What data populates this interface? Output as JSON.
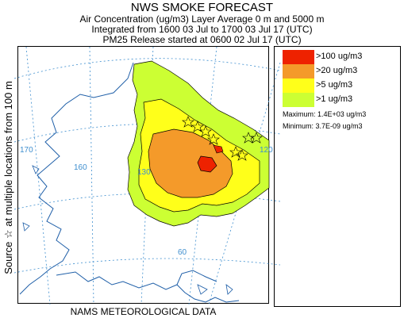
{
  "header": {
    "title": "NWS SMOKE FORECAST",
    "line1": "Air Concentration (ug/m3) Layer Average    0 m and  5000 m",
    "line2": "Integrated from 1600 03 Jul to 1700 03 Jul 17 (UTC)",
    "line3": "PM25 Release started at 0600 02 Jul 17 (UTC)"
  },
  "side_label": "Source ☆ at multiple locations   from  100 m",
  "bottom_label": "NAMS METEOROLOGICAL DATA",
  "map": {
    "longitude_labels": [
      "170",
      "160",
      "130",
      "120",
      "60"
    ],
    "source_marker": "☆"
  },
  "legend": {
    "items": [
      {
        "label": ">100 ug/m3",
        "color": "#ee2200"
      },
      {
        "label": ">20 ug/m3",
        "color": "#f49a2a"
      },
      {
        "label": ">5 ug/m3",
        "color": "#ffff1a"
      },
      {
        "label": ">1 ug/m3",
        "color": "#ccff33"
      }
    ],
    "maximum": "Maximum: 1.4E+03 ug/m3",
    "minimum": "Minimum: 3.7E-09 ug/m3"
  },
  "colors": {
    "water_lines": "#3f8fcf",
    "coastline": "#1f5fa8",
    "contour": "#000000"
  }
}
